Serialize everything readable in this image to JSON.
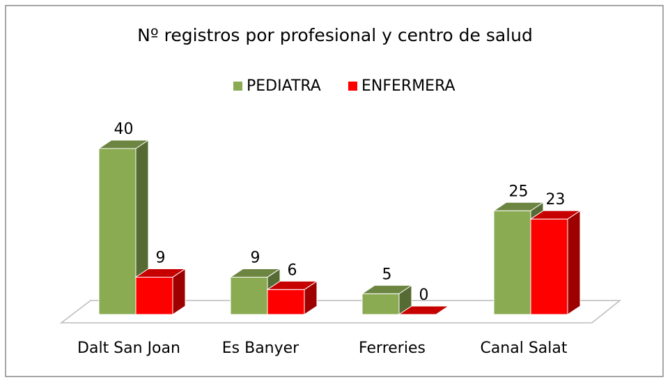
{
  "chart_data": {
    "type": "bar3d",
    "title": "Nº registros por profesional y centro de salud",
    "categories": [
      "Dalt San Joan",
      "Es Banyer",
      "Ferreries",
      "Canal Salat"
    ],
    "series": [
      {
        "name": "PEDIATRA",
        "color": "#8aab52",
        "values": [
          40,
          9,
          5,
          25
        ]
      },
      {
        "name": "ENFERMERA",
        "color": "#ff0000",
        "values": [
          9,
          6,
          0,
          23
        ]
      }
    ],
    "legend": "top"
  }
}
